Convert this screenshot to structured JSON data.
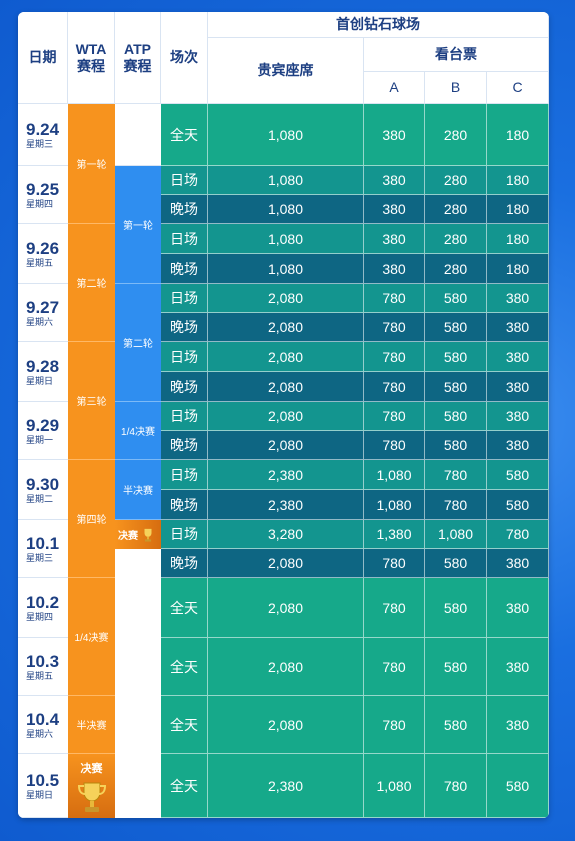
{
  "header": {
    "date_label": "日期",
    "wta_label": "WTA\n赛程",
    "atp_label": "ATP\n赛程",
    "session_label": "场次",
    "venue": "首创钻石球场",
    "vip_label": "贵宾座席",
    "stand_label": "看台票",
    "zones": [
      "A",
      "B",
      "C"
    ]
  },
  "dates": [
    {
      "date": "9.24",
      "weekday": "星期三"
    },
    {
      "date": "9.25",
      "weekday": "星期四"
    },
    {
      "date": "9.26",
      "weekday": "星期五"
    },
    {
      "date": "9.27",
      "weekday": "星期六"
    },
    {
      "date": "9.28",
      "weekday": "星期日"
    },
    {
      "date": "9.29",
      "weekday": "星期一"
    },
    {
      "date": "9.30",
      "weekday": "星期二"
    },
    {
      "date": "10.1",
      "weekday": "星期三"
    },
    {
      "date": "10.2",
      "weekday": "星期四"
    },
    {
      "date": "10.3",
      "weekday": "星期五"
    },
    {
      "date": "10.4",
      "weekday": "星期六"
    },
    {
      "date": "10.5",
      "weekday": "星期日"
    }
  ],
  "wta_rounds": [
    "第一轮",
    "第二轮",
    "第三轮",
    "第四轮",
    "1/4决赛",
    "半决赛",
    "决赛"
  ],
  "atp_rounds": [
    "第一轮",
    "第二轮",
    "1/4决赛",
    "半决赛",
    "决赛"
  ],
  "rows": [
    {
      "session": "全天",
      "vip": "1,080",
      "a": "380",
      "b": "280",
      "c": "180"
    },
    {
      "session": "日场",
      "vip": "1,080",
      "a": "380",
      "b": "280",
      "c": "180"
    },
    {
      "session": "晚场",
      "vip": "1,080",
      "a": "380",
      "b": "280",
      "c": "180"
    },
    {
      "session": "日场",
      "vip": "1,080",
      "a": "380",
      "b": "280",
      "c": "180"
    },
    {
      "session": "晚场",
      "vip": "1,080",
      "a": "380",
      "b": "280",
      "c": "180"
    },
    {
      "session": "日场",
      "vip": "2,080",
      "a": "780",
      "b": "580",
      "c": "380"
    },
    {
      "session": "晚场",
      "vip": "2,080",
      "a": "780",
      "b": "580",
      "c": "380"
    },
    {
      "session": "日场",
      "vip": "2,080",
      "a": "780",
      "b": "580",
      "c": "380"
    },
    {
      "session": "晚场",
      "vip": "2,080",
      "a": "780",
      "b": "580",
      "c": "380"
    },
    {
      "session": "日场",
      "vip": "2,080",
      "a": "780",
      "b": "580",
      "c": "380"
    },
    {
      "session": "晚场",
      "vip": "2,080",
      "a": "780",
      "b": "580",
      "c": "380"
    },
    {
      "session": "日场",
      "vip": "2,380",
      "a": "1,080",
      "b": "780",
      "c": "580"
    },
    {
      "session": "晚场",
      "vip": "2,380",
      "a": "1,080",
      "b": "780",
      "c": "580"
    },
    {
      "session": "日场",
      "vip": "3,280",
      "a": "1,380",
      "b": "1,080",
      "c": "780"
    },
    {
      "session": "晚场",
      "vip": "2,080",
      "a": "780",
      "b": "580",
      "c": "380"
    },
    {
      "session": "全天",
      "vip": "2,080",
      "a": "780",
      "b": "580",
      "c": "380"
    },
    {
      "session": "全天",
      "vip": "2,080",
      "a": "780",
      "b": "580",
      "c": "380"
    },
    {
      "session": "全天",
      "vip": "2,080",
      "a": "780",
      "b": "580",
      "c": "380"
    },
    {
      "session": "全天",
      "vip": "2,380",
      "a": "1,080",
      "b": "780",
      "c": "580"
    }
  ],
  "colors": {
    "all_day": "#16a98a",
    "day": "#13958f",
    "night": "#0e6683",
    "wta": "#f7931e",
    "atp": "#2f8ef0"
  }
}
